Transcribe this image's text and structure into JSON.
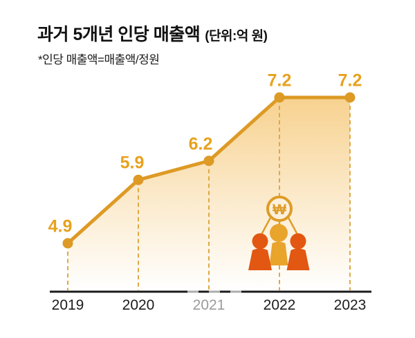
{
  "header": {
    "title": "과거 5개년 인당 매출액",
    "unit": "(단위:억 원)",
    "note": "*인당 매출액=매출액/정원"
  },
  "icon": {
    "name": "people-won-icon",
    "won_symbol": "₩"
  },
  "chart_data": {
    "type": "area",
    "title": "과거 5개년 인당 매출액",
    "unit_label": "(단위:억 원)",
    "footnote": "*인당 매출액=매출액/정원",
    "categories": [
      "2019",
      "2020",
      "2021",
      "2022",
      "2023"
    ],
    "series": [
      {
        "name": "인당 매출액",
        "values": [
          4.9,
          5.9,
          6.2,
          7.2,
          7.2
        ]
      }
    ],
    "value_labels": [
      "4.9",
      "5.9",
      "6.2",
      "7.2",
      "7.2"
    ],
    "muted_category": "2021",
    "grid": false,
    "legend": "none",
    "ylim": [
      4.1,
      7.6
    ],
    "colors": {
      "line": "#DD9A25",
      "point": "#DD9A25",
      "value_label": "#E7A21E",
      "guide_dash": "#DFA845",
      "area_top": "#F7D18E",
      "area_bottom": "#FFFFFF",
      "axis": "#1b1b1b",
      "axis_watermark": "#ACACAC",
      "x_label": "#1c1c1c",
      "x_label_muted": "#9B9B9B",
      "won_ring": "#DE9C26",
      "person_center": "#E9A42C",
      "person_side": "#E25712"
    }
  }
}
